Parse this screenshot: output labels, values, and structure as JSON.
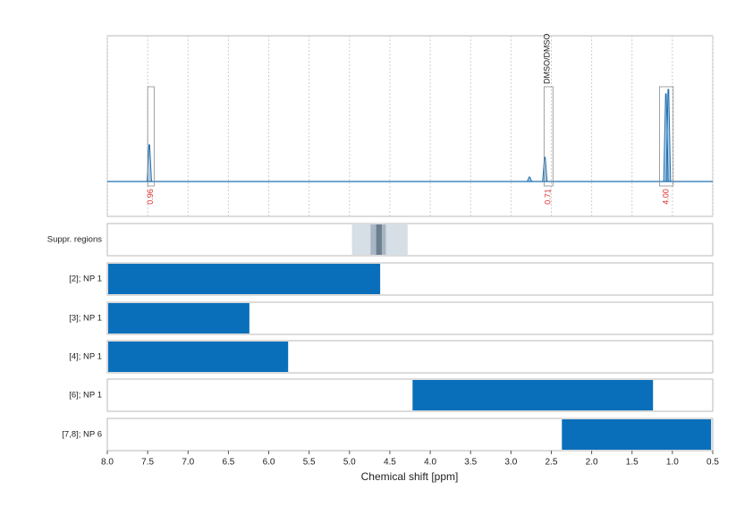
{
  "chart_data": {
    "type": "nmr",
    "xlabel": "Chemical shift [ppm]",
    "xlim": [
      8.0,
      0.5
    ],
    "xticks": [
      {
        "value": 8,
        "label": "8.0"
      },
      7.5,
      {
        "value": 7,
        "label": "7.0"
      },
      6.5,
      {
        "value": 6,
        "label": "6.0"
      },
      5.5,
      {
        "value": 5,
        "label": "5.0"
      },
      4.5,
      {
        "value": 4,
        "label": "4.0"
      },
      3.5,
      {
        "value": 3,
        "label": "3.0"
      },
      2.5,
      {
        "value": 2,
        "label": "2.0"
      },
      1.5,
      {
        "value": 1,
        "label": "1.0"
      },
      0.5
    ],
    "grid": true,
    "spectrum": {
      "color": "#1f6fb0",
      "ylim": [
        0,
        163
      ],
      "peaks": {
        "x": [
          7.48,
          2.77,
          2.58,
          1.08,
          1.05
        ],
        "height": [
          41,
          5,
          27,
          98,
          103
        ]
      }
    },
    "integrals": {
      "from": [
        7.5,
        2.59,
        1.16
      ],
      "to": [
        7.42,
        2.48,
        0.99
      ],
      "values": [
        0.96,
        0.71,
        4
      ],
      "value_labels": [
        "0.96",
        "0.71",
        "4.00"
      ],
      "color": "#e03030"
    },
    "annotations": [
      {
        "x": 2.55,
        "text": "DMSO/DMSO"
      }
    ],
    "rows": [
      {
        "name": "Suppr. regions",
        "bars": [
          {
            "from": 4.98,
            "to": 4.28,
            "color": "#d6dee6"
          },
          {
            "from": 4.75,
            "to": 4.55,
            "color": "#a8b6c3"
          },
          {
            "from": 4.68,
            "to": 4.6,
            "color": "#6c7f8f"
          }
        ]
      },
      {
        "name": "[2]; NP 1",
        "bars": [
          {
            "from": 8.0,
            "to": 4.62,
            "color": "#0a6fba"
          }
        ]
      },
      {
        "name": "[3]; NP 1",
        "bars": [
          {
            "from": 8.0,
            "to": 6.24,
            "color": "#0a6fba"
          }
        ]
      },
      {
        "name": "[4]; NP 1",
        "bars": [
          {
            "from": 8.0,
            "to": 5.76,
            "color": "#0a6fba"
          }
        ]
      },
      {
        "name": "[6]; NP 1",
        "bars": [
          {
            "from": 4.23,
            "to": 1.24,
            "color": "#0a6fba"
          }
        ]
      },
      {
        "name": "[7,8]; NP 6",
        "bars": [
          {
            "from": 2.38,
            "to": 0.52,
            "color": "#0a6fba"
          }
        ]
      }
    ]
  }
}
